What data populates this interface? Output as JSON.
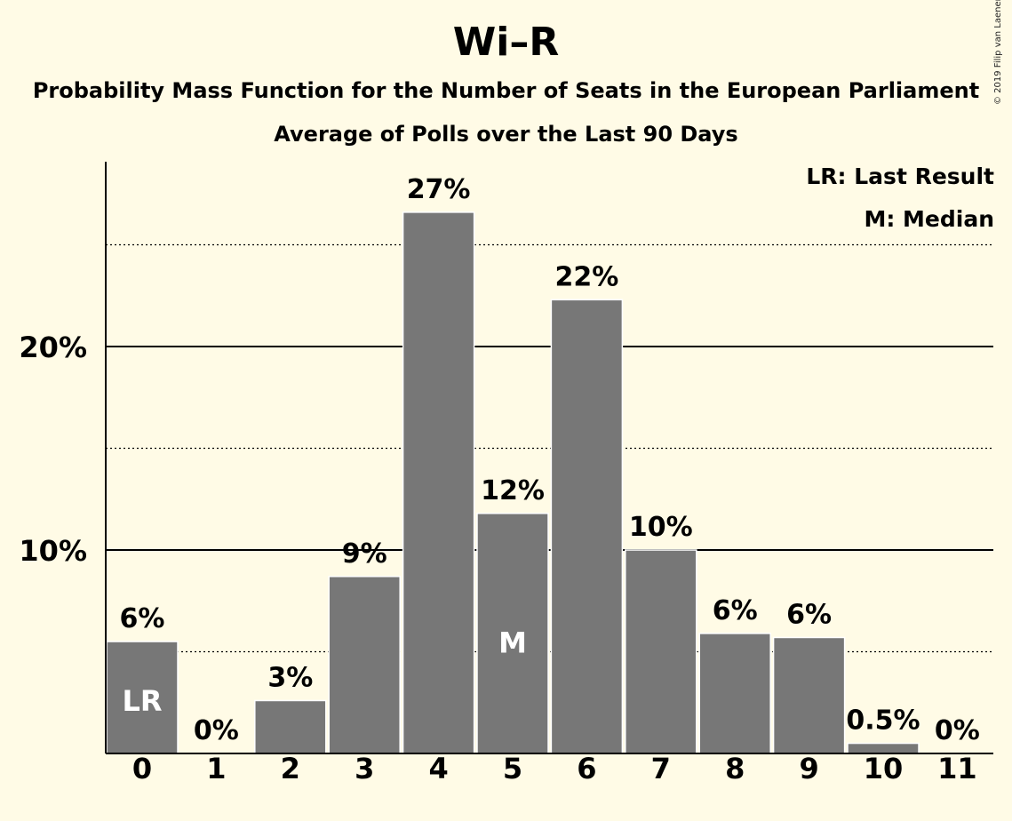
{
  "title": "Wi–R",
  "subtitle": "Probability Mass Function for the Number of Seats in the European Parliament",
  "subtitle2": "Average of Polls over the Last 90 Days",
  "copyright": "© 2019 Filip van Laenen",
  "legend": {
    "lr": "LR: Last Result",
    "m": "M: Median"
  },
  "colors": {
    "background": "#fffbe6",
    "bar": "#777777"
  },
  "chart_data": {
    "type": "bar",
    "categories": [
      "0",
      "1",
      "2",
      "3",
      "4",
      "5",
      "6",
      "7",
      "8",
      "9",
      "10",
      "11"
    ],
    "values": [
      5.5,
      0,
      2.6,
      8.7,
      26.6,
      11.8,
      22.3,
      10.0,
      5.9,
      5.7,
      0.5,
      0
    ],
    "data_labels": [
      "6%",
      "0%",
      "3%",
      "9%",
      "27%",
      "12%",
      "22%",
      "10%",
      "6%",
      "6%",
      "0.5%",
      "0%"
    ],
    "bar_markers": {
      "0": "LR",
      "5": "M"
    },
    "ytick_labels": [
      {
        "value": 10,
        "label": "10%"
      },
      {
        "value": 20,
        "label": "20%"
      }
    ],
    "solid_gridlines": [
      10,
      20
    ],
    "dotted_gridlines": [
      5,
      15,
      25
    ],
    "ylim": [
      0,
      29
    ],
    "xlabel": "",
    "ylabel": "",
    "grid": true,
    "legend_position": "top-right"
  }
}
